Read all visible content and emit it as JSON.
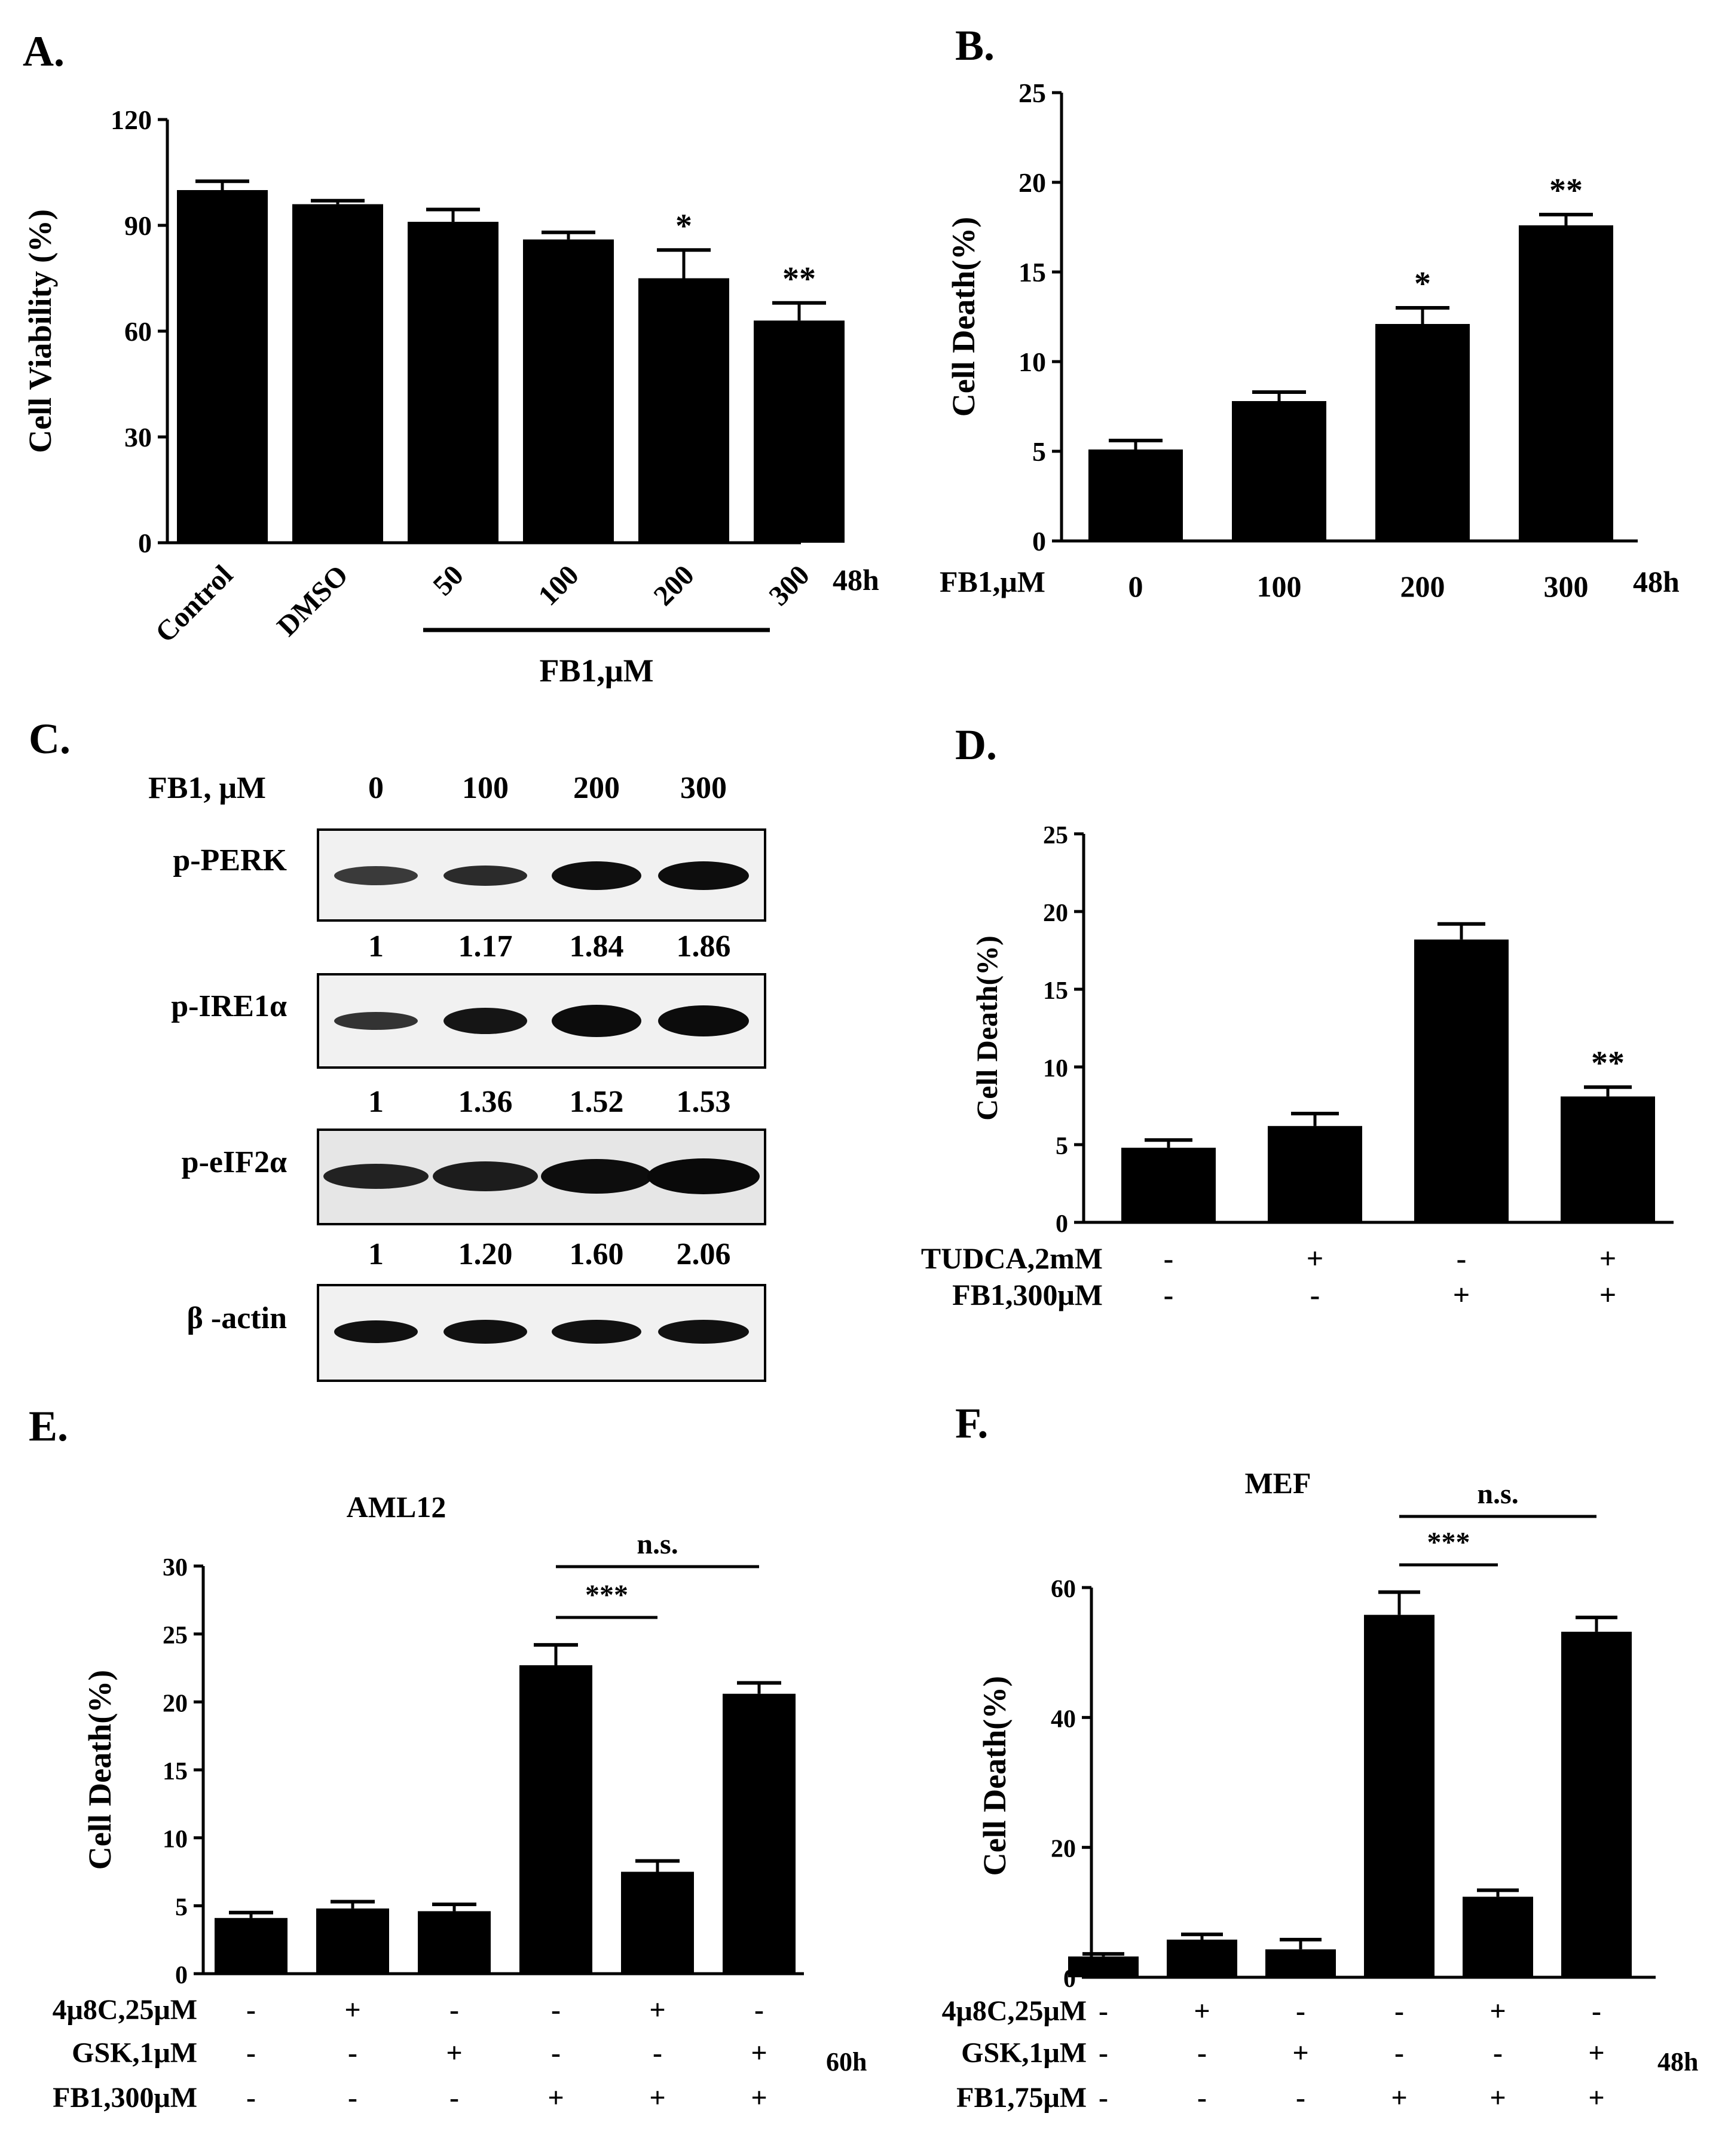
{
  "panel_labels": [
    "A.",
    "B.",
    "C.",
    "D.",
    "E.",
    "F."
  ],
  "chart_data": [
    {
      "id": "A",
      "type": "bar",
      "title": "",
      "ylabel": "Cell Viability (%)",
      "xlabel": "FB1,μM",
      "time_label": "48h",
      "categories": [
        "Control",
        "DMSO",
        "50",
        "100",
        "200",
        "300"
      ],
      "values": [
        100,
        96,
        91,
        86,
        75,
        63
      ],
      "errors": [
        2.5,
        1,
        3.5,
        2,
        8,
        5
      ],
      "annotations": [
        "",
        "",
        "",
        "",
        "*",
        "**"
      ],
      "yticks": [
        0,
        30,
        60,
        90,
        120
      ],
      "ylim": [
        0,
        120
      ]
    },
    {
      "id": "B",
      "type": "bar",
      "title": "",
      "ylabel": "Cell  Death(%)",
      "treatment_label": "FB1,μM",
      "time_label": "48h",
      "categories": [
        "0",
        "100",
        "200",
        "300"
      ],
      "values": [
        5.1,
        7.8,
        12.1,
        17.6
      ],
      "errors": [
        0.5,
        0.5,
        0.9,
        0.6
      ],
      "annotations": [
        "",
        "",
        "*",
        "**"
      ],
      "yticks": [
        0,
        5,
        10,
        15,
        20,
        25
      ],
      "ylim": [
        0,
        25
      ]
    },
    {
      "id": "D",
      "type": "bar",
      "title": "",
      "ylabel": "Cell Death(%)",
      "values": [
        4.8,
        6.2,
        18.2,
        8.1
      ],
      "errors": [
        0.5,
        0.8,
        1.0,
        0.6
      ],
      "annotations": [
        "",
        "",
        "",
        "**"
      ],
      "treatment_rows": [
        {
          "label": "TUDCA,2mM",
          "signs": [
            "-",
            "+",
            "-",
            "+"
          ]
        },
        {
          "label": "FB1,300μM",
          "signs": [
            "-",
            "-",
            "+",
            "+"
          ]
        }
      ],
      "yticks": [
        0,
        5,
        10,
        15,
        20,
        25
      ],
      "ylim": [
        0,
        25
      ]
    },
    {
      "id": "E",
      "type": "bar",
      "title": "AML12",
      "ylabel": "Cell  Death(%)",
      "time_label": "60h",
      "values": [
        4.1,
        4.8,
        4.6,
        22.7,
        7.5,
        20.6
      ],
      "errors": [
        0.4,
        0.5,
        0.5,
        1.5,
        0.8,
        0.8
      ],
      "annotations": [
        "",
        "",
        "",
        "",
        "",
        ""
      ],
      "treatment_rows": [
        {
          "label": "4μ8C,25μM",
          "signs": [
            "-",
            "+",
            "-",
            "-",
            "+",
            "-"
          ]
        },
        {
          "label": "GSK,1μM",
          "signs": [
            "-",
            "-",
            "+",
            "-",
            "-",
            "+"
          ]
        },
        {
          "label": "FB1,300μM",
          "signs": [
            "-",
            "-",
            "-",
            "+",
            "+",
            "+"
          ]
        }
      ],
      "comparisons": [
        {
          "from": 3,
          "to": 5,
          "label": "n.s."
        },
        {
          "from": 3,
          "to": 4,
          "label": "***"
        }
      ],
      "yticks": [
        0,
        5,
        10,
        15,
        20,
        25,
        30
      ],
      "ylim": [
        0,
        30
      ]
    },
    {
      "id": "F",
      "type": "bar",
      "title": "MEF",
      "ylabel": "Cell  Death(%)",
      "time_label": "48h",
      "values": [
        3.2,
        5.8,
        4.3,
        55.8,
        12.4,
        53.2
      ],
      "errors": [
        0.4,
        0.8,
        1.5,
        3.5,
        1.0,
        2.2
      ],
      "annotations": [
        "",
        "",
        "",
        "",
        "",
        ""
      ],
      "treatment_rows": [
        {
          "label": "4μ8C,25μM",
          "signs": [
            "-",
            "+",
            "-",
            "-",
            "+",
            "-"
          ]
        },
        {
          "label": "GSK,1μM",
          "signs": [
            "-",
            "-",
            "+",
            "-",
            "-",
            "+"
          ]
        },
        {
          "label": "FB1,75μM",
          "signs": [
            "-",
            "-",
            "-",
            "+",
            "+",
            "+"
          ]
        }
      ],
      "comparisons": [
        {
          "from": 3,
          "to": 5,
          "label": "n.s."
        },
        {
          "from": 3,
          "to": 4,
          "label": "***"
        }
      ],
      "yticks": [
        0,
        20,
        40,
        60
      ],
      "ylim": [
        0,
        62
      ]
    }
  ],
  "western_blot": {
    "header_label": "FB1, μM",
    "lanes": [
      "0",
      "100",
      "200",
      "300"
    ],
    "blots": [
      {
        "label": "p-PERK",
        "quant": [
          "1",
          "1.17",
          "1.84",
          "1.86"
        ]
      },
      {
        "label": "p-IRE1α",
        "quant": [
          "1",
          "1.36",
          "1.52",
          "1.53"
        ]
      },
      {
        "label": "p-eIF2α",
        "quant": [
          "1",
          "1.20",
          "1.60",
          "2.06"
        ]
      },
      {
        "label": "β -actin",
        "quant": []
      }
    ]
  }
}
